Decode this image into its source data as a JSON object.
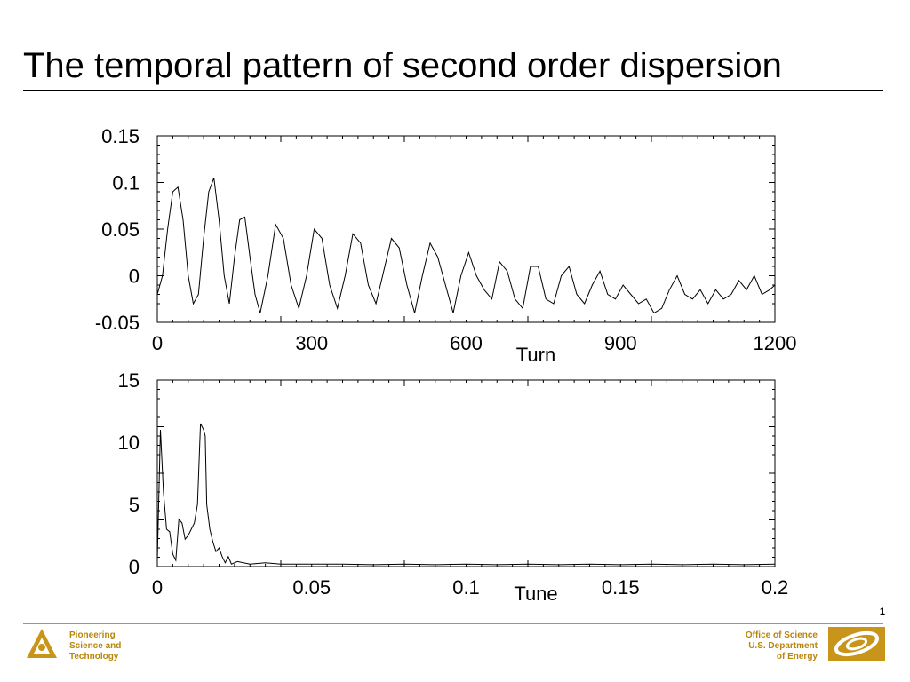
{
  "slide": {
    "title": "The temporal pattern of second order dispersion",
    "page_number": "1"
  },
  "footer": {
    "left_lines": [
      "Pioneering",
      "Science and",
      "Technology"
    ],
    "left_logo_icon": "argonne-triangle-logo-icon",
    "right_lines": [
      "Office of Science",
      "U.S. Department",
      "of Energy"
    ],
    "right_logo_icon": "doe-office-of-science-logo-icon",
    "accent_color": "#c8941a"
  },
  "chart_data": [
    {
      "type": "line",
      "xlabel": "Turn",
      "ylabel": "",
      "xlim": [
        0,
        1200
      ],
      "ylim": [
        -0.05,
        0.15
      ],
      "x_ticks": [
        "0",
        "300",
        "600",
        "900",
        "1200"
      ],
      "x_tick_values": [
        0,
        300,
        600,
        900,
        1200
      ],
      "y_ticks": [
        "0.15",
        "0.1",
        "0.05",
        "0",
        "-0.05"
      ],
      "y_tick_values": [
        0.15,
        0.1,
        0.05,
        0,
        -0.05
      ],
      "grid": false,
      "series": [
        {
          "x": [
            0,
            10,
            20,
            30,
            40,
            50,
            60,
            70,
            80,
            90,
            100,
            110,
            120,
            130,
            140,
            150,
            160,
            170,
            180,
            190,
            200,
            215,
            230,
            245,
            260,
            275,
            290,
            305,
            320,
            335,
            350,
            365,
            380,
            395,
            410,
            425,
            440,
            455,
            470,
            485,
            500,
            515,
            530,
            545,
            560,
            575,
            590,
            605,
            620,
            635,
            650,
            665,
            680,
            695,
            710,
            725,
            740,
            755,
            770,
            785,
            800,
            815,
            830,
            845,
            860,
            875,
            890,
            905,
            920,
            935,
            950,
            965,
            980,
            995,
            1010,
            1025,
            1040,
            1055,
            1070,
            1085,
            1100,
            1115,
            1130,
            1145,
            1160,
            1175,
            1190,
            1200
          ],
          "y": [
            -0.02,
            0.0,
            0.05,
            0.09,
            0.095,
            0.06,
            0.0,
            -0.03,
            -0.02,
            0.04,
            0.09,
            0.105,
            0.06,
            0.0,
            -0.03,
            0.02,
            0.06,
            0.063,
            0.02,
            -0.02,
            -0.04,
            0.0,
            0.055,
            0.04,
            -0.01,
            -0.035,
            0.0,
            0.05,
            0.04,
            -0.01,
            -0.035,
            0.0,
            0.045,
            0.035,
            -0.01,
            -0.03,
            0.005,
            0.04,
            0.03,
            -0.01,
            -0.04,
            0.0,
            0.035,
            0.02,
            -0.01,
            -0.04,
            0.0,
            0.025,
            0.0,
            -0.015,
            -0.025,
            0.015,
            0.005,
            -0.025,
            -0.035,
            0.01,
            0.01,
            -0.025,
            -0.03,
            0.0,
            0.01,
            -0.02,
            -0.03,
            -0.01,
            0.005,
            -0.02,
            -0.025,
            -0.01,
            -0.02,
            -0.03,
            -0.025,
            -0.04,
            -0.035,
            -0.015,
            0.0,
            -0.02,
            -0.025,
            -0.015,
            -0.03,
            -0.015,
            -0.025,
            -0.02,
            -0.005,
            -0.015,
            0.0,
            -0.02,
            -0.015,
            -0.01
          ]
        }
      ]
    },
    {
      "type": "line",
      "xlabel": "Tune",
      "ylabel": "",
      "xlim": [
        0,
        0.2
      ],
      "ylim": [
        0,
        15
      ],
      "x_ticks": [
        "0",
        "0.05",
        "0.1",
        "0.15",
        "0.2"
      ],
      "x_tick_values": [
        0,
        0.05,
        0.1,
        0.15,
        0.2
      ],
      "y_ticks": [
        "15",
        "10",
        "5",
        "0"
      ],
      "y_tick_values": [
        15,
        10,
        5,
        0
      ],
      "grid": false,
      "series": [
        {
          "x": [
            0,
            0.001,
            0.002,
            0.003,
            0.004,
            0.005,
            0.006,
            0.007,
            0.008,
            0.009,
            0.01,
            0.011,
            0.012,
            0.013,
            0.014,
            0.015,
            0.0155,
            0.016,
            0.017,
            0.018,
            0.019,
            0.02,
            0.021,
            0.022,
            0.023,
            0.024,
            0.026,
            0.03,
            0.035,
            0.04,
            0.05,
            0.06,
            0.07,
            0.08,
            0.09,
            0.1,
            0.11,
            0.12,
            0.13,
            0.14,
            0.15,
            0.16,
            0.17,
            0.18,
            0.19,
            0.2
          ],
          "y": [
            0.5,
            11,
            6,
            3,
            2.8,
            1,
            0.5,
            3.8,
            3.5,
            2.2,
            2.5,
            3,
            3.5,
            5,
            11.5,
            11,
            10.5,
            5,
            3,
            2,
            1.2,
            1.5,
            0.8,
            0.3,
            0.8,
            0.2,
            0.4,
            0.2,
            0.3,
            0.2,
            0.2,
            0.2,
            0.15,
            0.2,
            0.15,
            0.2,
            0.15,
            0.2,
            0.15,
            0.2,
            0.15,
            0.2,
            0.15,
            0.2,
            0.15,
            0.2
          ]
        }
      ]
    }
  ]
}
